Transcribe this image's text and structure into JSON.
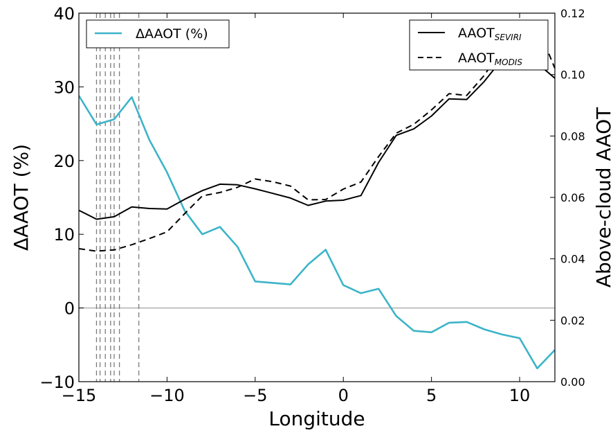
{
  "chart_data": {
    "type": "line",
    "xlabel": "Longitude",
    "ylabel_left": "ΔAAOT (%)",
    "ylabel_right": "Above-cloud AAOT",
    "xlim": [
      -15,
      12
    ],
    "ylim_left": [
      -10,
      40
    ],
    "ylim_right": [
      0.0,
      0.12
    ],
    "x_ticks": [
      -15,
      -10,
      -5,
      0,
      5,
      10
    ],
    "x_tick_labels": [
      "−15",
      "−10",
      "−5",
      "0",
      "5",
      "10"
    ],
    "y_left_ticks": [
      -10,
      0,
      10,
      20,
      30,
      40
    ],
    "y_left_tick_labels": [
      "−10",
      "0",
      "10",
      "20",
      "30",
      "40"
    ],
    "y_right_ticks": [
      0.0,
      0.02,
      0.04,
      0.06,
      0.08,
      0.1,
      0.12
    ],
    "y_right_tick_labels": [
      "0.00",
      "0.02",
      "0.04",
      "0.06",
      "0.08",
      "0.10",
      "0.12"
    ],
    "grid": false,
    "zero_line": 0,
    "vertical_dashed_lines_x": [
      -14,
      -13.8,
      -13.5,
      -13.2,
      -13.0,
      -12.7,
      -11.6
    ],
    "legend_left": {
      "placement": "top-left",
      "entries": [
        {
          "label": "ΔAAOT (%)",
          "color": "#3cb4c8",
          "style": "solid"
        }
      ]
    },
    "legend_right": {
      "placement": "top-right",
      "entries": [
        {
          "label": "AAOT",
          "sub": "SEVIRI",
          "color": "#000000",
          "style": "solid"
        },
        {
          "label": "AAOT",
          "sub": "MODIS",
          "color": "#000000",
          "style": "dashed"
        }
      ]
    },
    "series": [
      {
        "name": "ΔAAOT (%)",
        "axis": "left",
        "color": "#3cb4c8",
        "style": "solid",
        "x": [
          -15,
          -14,
          -13,
          -12,
          -11,
          -10,
          -9,
          -8,
          -7,
          -6,
          -5,
          -4,
          -3,
          -2,
          -1,
          0,
          1,
          2,
          3,
          4,
          5,
          6,
          7,
          8,
          9,
          10,
          11,
          12
        ],
        "y": [
          28.8,
          24.9,
          25.6,
          28.6,
          22.8,
          18.4,
          13.2,
          10.0,
          11.0,
          8.3,
          3.6,
          3.4,
          3.2,
          5.9,
          7.9,
          3.1,
          2.0,
          2.6,
          -1.1,
          -3.1,
          -3.3,
          -2.0,
          -1.9,
          -2.9,
          -3.6,
          -4.1,
          -8.2,
          -5.7
        ]
      },
      {
        "name": "AAOT SEVIRI",
        "axis": "right",
        "color": "#000000",
        "style": "solid",
        "x": [
          -15,
          -14,
          -13,
          -12,
          -11,
          -10,
          -9,
          -8,
          -7,
          -6,
          -5,
          -4,
          -3,
          -2,
          -1,
          0,
          1,
          2,
          3,
          4,
          5,
          6,
          7,
          8,
          9,
          10,
          11,
          12
        ],
        "y": [
          0.0558,
          0.0529,
          0.0537,
          0.0569,
          0.0564,
          0.0562,
          0.0594,
          0.0622,
          0.0643,
          0.0641,
          0.0628,
          0.0613,
          0.0598,
          0.0574,
          0.0588,
          0.0591,
          0.0606,
          0.0714,
          0.0802,
          0.0823,
          0.0865,
          0.0921,
          0.0919,
          0.0978,
          0.105,
          0.1104,
          0.1037,
          0.0988
        ]
      },
      {
        "name": "AAOT MODIS",
        "axis": "right",
        "color": "#000000",
        "style": "dashed",
        "x": [
          -15,
          -14,
          -13,
          -12,
          -11,
          -10,
          -9,
          -8,
          -7,
          -6,
          -5,
          -4,
          -3,
          -2,
          -1,
          0,
          1,
          2,
          3,
          4,
          5,
          6,
          7,
          8,
          9,
          10,
          11,
          12
        ],
        "y": [
          0.0433,
          0.0425,
          0.0429,
          0.0446,
          0.0466,
          0.0488,
          0.0547,
          0.0605,
          0.0616,
          0.0633,
          0.066,
          0.0651,
          0.0637,
          0.0592,
          0.0593,
          0.0627,
          0.065,
          0.0733,
          0.0809,
          0.0838,
          0.0885,
          0.0938,
          0.0932,
          0.0998,
          0.1085,
          0.1151,
          0.116,
          0.102
        ]
      }
    ]
  }
}
